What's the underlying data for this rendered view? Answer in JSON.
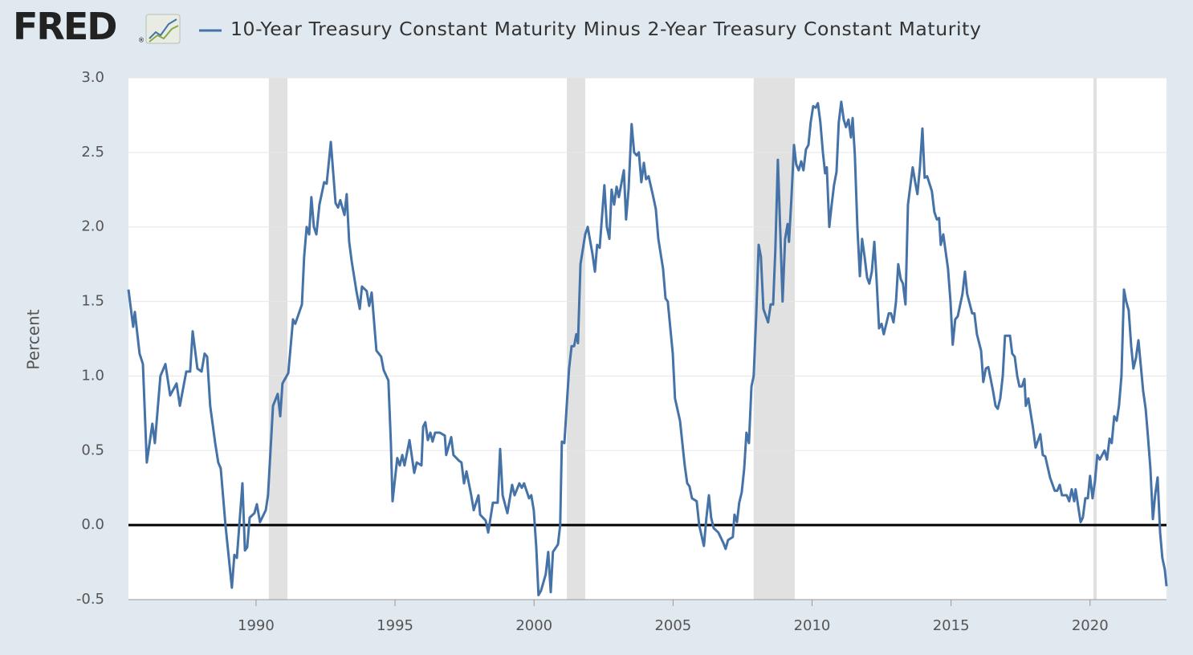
{
  "logo": "FRED",
  "chart_data": {
    "type": "line",
    "ylabel": "Percent",
    "x": [
      1985.41,
      1985.58,
      1985.64,
      1985.81,
      1985.93,
      1986.07,
      1986.27,
      1986.36,
      1986.56,
      1986.74,
      1986.91,
      1987.14,
      1987.26,
      1987.49,
      1987.63,
      1987.72,
      1987.89,
      1988.04,
      1988.15,
      1988.24,
      1988.35,
      1988.53,
      1988.64,
      1988.73,
      1988.9,
      1989.13,
      1989.22,
      1989.31,
      1989.51,
      1989.6,
      1989.68,
      1989.77,
      1989.94,
      1990.03,
      1990.14,
      1990.35,
      1990.43,
      1990.61,
      1990.78,
      1990.87,
      1990.95,
      1991.16,
      1991.33,
      1991.41,
      1991.65,
      1991.73,
      1991.82,
      1991.91,
      1991.99,
      1992.08,
      1992.17,
      1992.28,
      1992.45,
      1992.54,
      1992.69,
      1992.86,
      1992.95,
      1993.03,
      1993.18,
      1993.26,
      1993.35,
      1993.44,
      1993.61,
      1993.73,
      1993.81,
      1993.98,
      1994.07,
      1994.16,
      1994.33,
      1994.5,
      1994.59,
      1994.76,
      1994.85,
      1994.91,
      1995.08,
      1995.17,
      1995.26,
      1995.34,
      1995.52,
      1995.69,
      1995.78,
      1995.95,
      1996.01,
      1996.09,
      1996.18,
      1996.27,
      1996.35,
      1996.44,
      1996.61,
      1996.79,
      1996.84,
      1997.02,
      1997.1,
      1997.31,
      1997.39,
      1997.48,
      1997.57,
      1997.74,
      1997.83,
      1998.0,
      1998.06,
      1998.26,
      1998.35,
      1998.52,
      1998.69,
      1998.78,
      1998.87,
      1999.04,
      1999.21,
      1999.3,
      1999.47,
      1999.56,
      1999.64,
      1999.82,
      1999.9,
      1999.99,
      2000.08,
      2000.16,
      2000.25,
      2000.42,
      2000.51,
      2000.6,
      2000.68,
      2000.86,
      2000.94,
      2001.0,
      2001.09,
      2001.26,
      2001.35,
      2001.44,
      2001.52,
      2001.58,
      2001.67,
      2001.84,
      2001.93,
      2002.1,
      2002.19,
      2002.27,
      2002.36,
      2002.53,
      2002.62,
      2002.71,
      2002.79,
      2002.88,
      2002.97,
      2003.05,
      2003.23,
      2003.31,
      2003.4,
      2003.51,
      2003.6,
      2003.69,
      2003.77,
      2003.86,
      2003.95,
      2004.03,
      2004.12,
      2004.29,
      2004.38,
      2004.47,
      2004.64,
      2004.73,
      2004.81,
      2004.99,
      2005.07,
      2005.25,
      2005.42,
      2005.51,
      2005.59,
      2005.68,
      2005.85,
      2005.94,
      2006.11,
      2006.2,
      2006.29,
      2006.37,
      2006.46,
      2006.63,
      2006.81,
      2006.89,
      2006.98,
      2007.15,
      2007.21,
      2007.3,
      2007.38,
      2007.47,
      2007.56,
      2007.64,
      2007.73,
      2007.82,
      2007.9,
      2007.99,
      2008.08,
      2008.16,
      2008.25,
      2008.42,
      2008.51,
      2008.6,
      2008.68,
      2008.77,
      2008.86,
      2008.94,
      2009.03,
      2009.12,
      2009.17,
      2009.26,
      2009.35,
      2009.43,
      2009.52,
      2009.61,
      2009.69,
      2009.78,
      2009.87,
      2009.95,
      2010.04,
      2010.13,
      2010.21,
      2010.3,
      2010.39,
      2010.47,
      2010.53,
      2010.62,
      2010.7,
      2010.79,
      2010.88,
      2010.96,
      2011.05,
      2011.14,
      2011.22,
      2011.31,
      2011.4,
      2011.46,
      2011.54,
      2011.63,
      2011.72,
      2011.8,
      2011.89,
      2011.98,
      2012.06,
      2012.15,
      2012.24,
      2012.32,
      2012.41,
      2012.5,
      2012.58,
      2012.76,
      2012.84,
      2012.93,
      2013.02,
      2013.1,
      2013.19,
      2013.27,
      2013.36,
      2013.45,
      2013.62,
      2013.71,
      2013.79,
      2013.88,
      2013.97,
      2014.05,
      2014.14,
      2014.31,
      2014.4,
      2014.49,
      2014.57,
      2014.63,
      2014.72,
      2014.89,
      2014.98,
      2015.06,
      2015.15,
      2015.24,
      2015.41,
      2015.5,
      2015.58,
      2015.76,
      2015.84,
      2015.93,
      2016.08,
      2016.16,
      2016.25,
      2016.34,
      2016.51,
      2016.6,
      2016.68,
      2016.77,
      2016.86,
      2016.94,
      2017.12,
      2017.2,
      2017.29,
      2017.38,
      2017.46,
      2017.55,
      2017.64,
      2017.69,
      2017.78,
      2017.95,
      2018.04,
      2018.21,
      2018.3,
      2018.39,
      2018.56,
      2018.73,
      2018.82,
      2018.91,
      2018.99,
      2019.16,
      2019.25,
      2019.34,
      2019.43,
      2019.48,
      2019.57,
      2019.66,
      2019.74,
      2019.83,
      2019.92,
      2020.0,
      2020.09,
      2020.18,
      2020.26,
      2020.35,
      2020.52,
      2020.61,
      2020.7,
      2020.78,
      2020.87,
      2020.96,
      2021.04,
      2021.13,
      2021.22,
      2021.3,
      2021.39,
      2021.48,
      2021.56,
      2021.65,
      2021.74,
      2021.82,
      2021.91,
      2022.0,
      2022.08,
      2022.17,
      2022.26,
      2022.34,
      2022.43,
      2022.52,
      2022.6,
      2022.69,
      2022.75
    ],
    "series": [
      {
        "name": "10-Year Treasury Constant Maturity Minus 2-Year Treasury Constant Maturity",
        "color": "#4572a7",
        "values": [
          1.58,
          1.33,
          1.43,
          1.15,
          1.08,
          0.42,
          0.68,
          0.55,
          1.0,
          1.08,
          0.87,
          0.95,
          0.8,
          1.03,
          1.03,
          1.3,
          1.05,
          1.03,
          1.15,
          1.13,
          0.8,
          0.55,
          0.42,
          0.38,
          0.0,
          -0.42,
          -0.2,
          -0.22,
          0.28,
          -0.17,
          -0.15,
          0.05,
          0.08,
          0.14,
          0.02,
          0.1,
          0.2,
          0.8,
          0.88,
          0.73,
          0.95,
          1.02,
          1.38,
          1.35,
          1.48,
          1.8,
          2.0,
          1.95,
          2.2,
          2.0,
          1.95,
          2.15,
          2.3,
          2.29,
          2.57,
          2.16,
          2.13,
          2.18,
          2.08,
          2.22,
          1.9,
          1.77,
          1.57,
          1.45,
          1.6,
          1.57,
          1.47,
          1.56,
          1.17,
          1.13,
          1.04,
          0.97,
          0.55,
          0.16,
          0.45,
          0.4,
          0.47,
          0.4,
          0.57,
          0.35,
          0.42,
          0.4,
          0.66,
          0.69,
          0.57,
          0.62,
          0.56,
          0.62,
          0.62,
          0.6,
          0.47,
          0.59,
          0.47,
          0.43,
          0.42,
          0.28,
          0.36,
          0.2,
          0.1,
          0.2,
          0.07,
          0.03,
          -0.05,
          0.15,
          0.15,
          0.51,
          0.2,
          0.08,
          0.27,
          0.2,
          0.28,
          0.25,
          0.28,
          0.18,
          0.2,
          0.1,
          -0.15,
          -0.47,
          -0.44,
          -0.33,
          -0.18,
          -0.45,
          -0.18,
          -0.13,
          0.0,
          0.56,
          0.55,
          1.05,
          1.2,
          1.2,
          1.28,
          1.22,
          1.75,
          1.95,
          2.0,
          1.82,
          1.7,
          1.88,
          1.86,
          2.28,
          2.0,
          1.92,
          2.25,
          2.15,
          2.27,
          2.2,
          2.38,
          2.05,
          2.25,
          2.69,
          2.5,
          2.48,
          2.5,
          2.3,
          2.43,
          2.32,
          2.34,
          2.2,
          2.12,
          1.92,
          1.72,
          1.52,
          1.5,
          1.15,
          0.85,
          0.7,
          0.4,
          0.28,
          0.26,
          0.18,
          0.16,
          0.0,
          -0.14,
          0.05,
          0.2,
          0.05,
          -0.02,
          -0.05,
          -0.12,
          -0.16,
          -0.1,
          -0.08,
          0.07,
          0.02,
          0.15,
          0.22,
          0.38,
          0.62,
          0.55,
          0.93,
          1.0,
          1.4,
          1.88,
          1.8,
          1.45,
          1.36,
          1.48,
          1.48,
          1.85,
          2.45,
          1.95,
          1.5,
          1.92,
          2.02,
          1.9,
          2.2,
          2.55,
          2.42,
          2.38,
          2.44,
          2.38,
          2.52,
          2.55,
          2.7,
          2.81,
          2.8,
          2.83,
          2.7,
          2.5,
          2.36,
          2.4,
          2.0,
          2.14,
          2.28,
          2.37,
          2.7,
          2.84,
          2.72,
          2.67,
          2.72,
          2.6,
          2.73,
          2.48,
          2.0,
          1.67,
          1.92,
          1.8,
          1.66,
          1.62,
          1.7,
          1.9,
          1.65,
          1.32,
          1.35,
          1.28,
          1.42,
          1.42,
          1.36,
          1.5,
          1.75,
          1.65,
          1.62,
          1.48,
          2.15,
          2.4,
          2.3,
          2.22,
          2.4,
          2.66,
          2.33,
          2.34,
          2.24,
          2.1,
          2.05,
          2.06,
          1.88,
          1.95,
          1.72,
          1.5,
          1.21,
          1.38,
          1.4,
          1.55,
          1.7,
          1.55,
          1.42,
          1.42,
          1.28,
          1.17,
          0.96,
          1.05,
          1.06,
          0.9,
          0.8,
          0.78,
          0.85,
          1.0,
          1.27,
          1.27,
          1.15,
          1.13,
          1.0,
          0.93,
          0.93,
          0.98,
          0.8,
          0.85,
          0.65,
          0.52,
          0.61,
          0.47,
          0.46,
          0.32,
          0.23,
          0.23,
          0.27,
          0.2,
          0.2,
          0.16,
          0.24,
          0.16,
          0.24,
          0.13,
          0.02,
          0.05,
          0.18,
          0.18,
          0.33,
          0.18,
          0.3,
          0.47,
          0.44,
          0.5,
          0.44,
          0.58,
          0.55,
          0.73,
          0.7,
          0.8,
          1.0,
          1.58,
          1.5,
          1.44,
          1.2,
          1.05,
          1.12,
          1.24,
          1.08,
          0.9,
          0.78,
          0.6,
          0.38,
          0.04,
          0.2,
          0.32,
          -0.05,
          -0.22,
          -0.3,
          -0.41
        ]
      }
    ],
    "recessions": [
      [
        1990.46,
        1991.13
      ],
      [
        2001.18,
        2001.84
      ],
      [
        2007.9,
        2009.38
      ],
      [
        2020.12,
        2020.24
      ]
    ],
    "recession_color": "#e1e1e1",
    "xlim": [
      1985.41,
      2022.75
    ],
    "xticks": [
      1990,
      1995,
      2000,
      2005,
      2010,
      2015,
      2020
    ],
    "ylim": [
      -0.5,
      3.0
    ],
    "yticks": [
      {
        "value": 3,
        "label": "3.0"
      },
      2.5,
      {
        "value": 2,
        "label": "2.0"
      },
      1.5,
      {
        "value": 1,
        "label": "1.0"
      },
      0.5,
      {
        "value": 0,
        "label": "0.0"
      },
      -0.5
    ],
    "grid": true
  }
}
